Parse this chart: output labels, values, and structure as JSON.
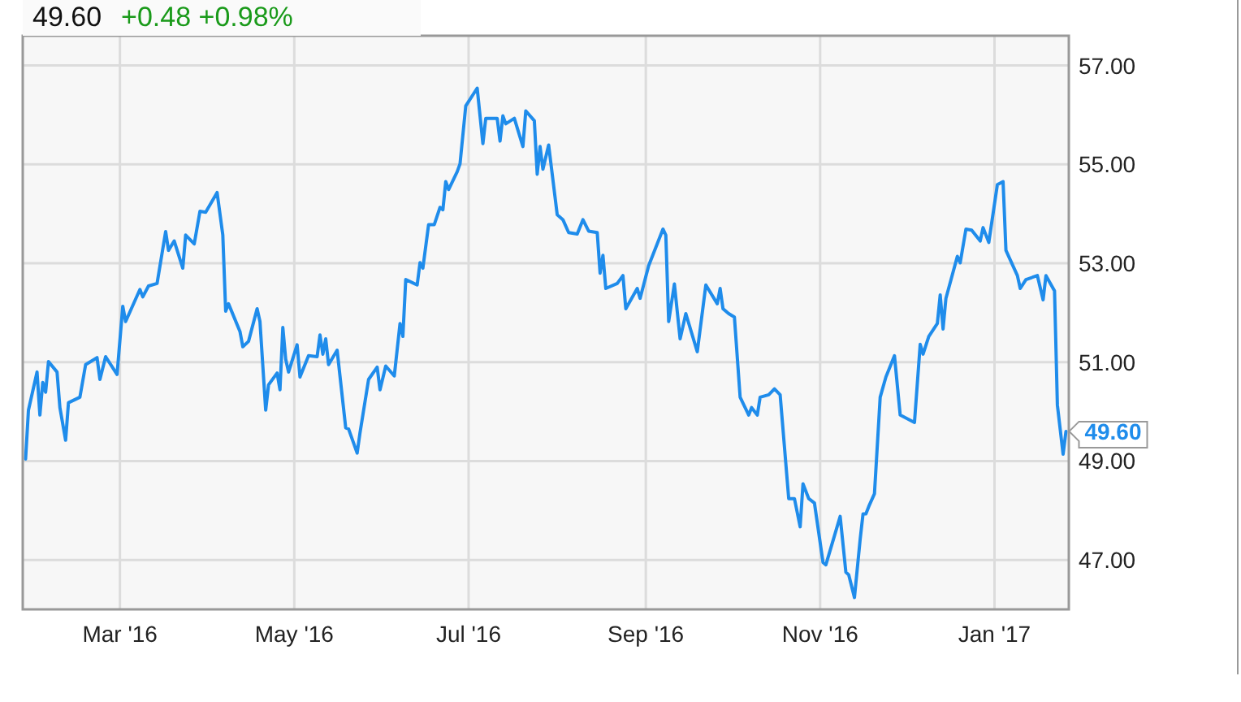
{
  "chart_data": {
    "type": "line",
    "title": "49.60",
    "subtitle": "+0.48  +0.98%",
    "x": [
      "2016-01-28",
      "2016-01-29",
      "2016-02-01",
      "2016-02-02",
      "2016-02-03",
      "2016-02-04",
      "2016-02-05",
      "2016-02-08",
      "2016-02-09",
      "2016-02-11",
      "2016-02-12",
      "2016-02-16",
      "2016-02-18",
      "2016-02-22",
      "2016-02-23",
      "2016-02-25",
      "2016-02-29",
      "2016-03-02",
      "2016-03-03",
      "2016-03-08",
      "2016-03-09",
      "2016-03-11",
      "2016-03-14",
      "2016-03-17",
      "2016-03-18",
      "2016-03-20",
      "2016-03-23",
      "2016-03-24",
      "2016-03-27",
      "2016-03-29",
      "2016-03-31",
      "2016-04-04",
      "2016-04-06",
      "2016-04-07",
      "2016-04-08",
      "2016-04-12",
      "2016-04-13",
      "2016-04-15",
      "2016-04-18",
      "2016-04-19",
      "2016-04-21",
      "2016-04-22",
      "2016-04-25",
      "2016-04-26",
      "2016-04-27",
      "2016-04-28",
      "2016-04-29",
      "2016-05-02",
      "2016-05-03",
      "2016-05-06",
      "2016-05-09",
      "2016-05-10",
      "2016-05-11",
      "2016-05-12",
      "2016-05-13",
      "2016-05-16",
      "2016-05-19",
      "2016-05-20",
      "2016-05-23",
      "2016-05-24",
      "2016-05-27",
      "2016-05-30",
      "2016-05-31",
      "2016-06-02",
      "2016-06-05",
      "2016-06-07",
      "2016-06-08",
      "2016-06-09",
      "2016-06-13",
      "2016-06-14",
      "2016-06-15",
      "2016-06-17",
      "2016-06-19",
      "2016-06-21",
      "2016-06-22",
      "2016-06-23",
      "2016-06-24",
      "2016-06-27",
      "2016-06-28",
      "2016-06-30",
      "2016-07-04",
      "2016-07-06",
      "2016-07-07",
      "2016-07-11",
      "2016-07-12",
      "2016-07-13",
      "2016-07-14",
      "2016-07-17",
      "2016-07-20",
      "2016-07-21",
      "2016-07-24",
      "2016-07-25",
      "2016-07-26",
      "2016-07-27",
      "2016-07-29",
      "2016-08-01",
      "2016-08-03",
      "2016-08-05",
      "2016-08-08",
      "2016-08-10",
      "2016-08-12",
      "2016-08-15",
      "2016-08-16",
      "2016-08-17",
      "2016-08-18",
      "2016-08-22",
      "2016-08-24",
      "2016-08-25",
      "2016-08-29",
      "2016-08-30",
      "2016-09-02",
      "2016-09-07",
      "2016-09-08",
      "2016-09-09",
      "2016-09-11",
      "2016-09-13",
      "2016-09-15",
      "2016-09-19",
      "2016-09-22",
      "2016-09-26",
      "2016-09-27",
      "2016-09-28",
      "2016-09-30",
      "2016-10-02",
      "2016-10-04",
      "2016-10-07",
      "2016-10-08",
      "2016-10-10",
      "2016-10-11",
      "2016-10-14",
      "2016-10-16",
      "2016-10-18",
      "2016-10-21",
      "2016-10-23",
      "2016-10-25",
      "2016-10-26",
      "2016-10-28",
      "2016-10-30",
      "2016-11-02",
      "2016-11-03",
      "2016-11-08",
      "2016-11-10",
      "2016-11-11",
      "2016-11-13",
      "2016-11-15",
      "2016-11-16",
      "2016-11-17",
      "2016-11-18",
      "2016-11-20",
      "2016-11-22",
      "2016-11-24",
      "2016-11-27",
      "2016-11-29",
      "2016-12-04",
      "2016-12-06",
      "2016-12-07",
      "2016-12-09",
      "2016-12-12",
      "2016-12-13",
      "2016-12-14",
      "2016-12-15",
      "2016-12-19",
      "2016-12-20",
      "2016-12-22",
      "2016-12-24",
      "2016-12-27",
      "2016-12-28",
      "2016-12-30",
      "2017-01-02",
      "2017-01-04",
      "2017-01-05",
      "2017-01-09",
      "2017-01-10",
      "2017-01-12",
      "2017-01-16",
      "2017-01-18",
      "2017-01-19",
      "2017-01-22",
      "2017-01-23",
      "2017-01-25",
      "2017-01-26"
    ],
    "series": [
      {
        "color": "#1f8ceb",
        "values": [
          49.04,
          50.03,
          50.8,
          49.93,
          50.59,
          50.39,
          51.01,
          50.8,
          50.08,
          49.42,
          50.18,
          50.29,
          50.95,
          51.09,
          50.65,
          51.11,
          50.75,
          52.13,
          51.82,
          52.47,
          52.32,
          52.54,
          52.59,
          53.64,
          53.26,
          53.45,
          52.9,
          53.57,
          53.39,
          54.05,
          54.03,
          54.43,
          53.57,
          52.03,
          52.18,
          51.62,
          51.31,
          51.42,
          52.08,
          51.82,
          50.03,
          50.54,
          50.78,
          50.44,
          51.7,
          51.06,
          50.8,
          51.35,
          50.7,
          51.13,
          51.11,
          51.55,
          51.16,
          51.47,
          50.95,
          51.24,
          49.67,
          49.65,
          49.16,
          49.57,
          50.65,
          50.9,
          50.44,
          50.92,
          50.72,
          51.78,
          51.52,
          52.67,
          52.56,
          53.01,
          52.9,
          53.78,
          53.78,
          54.13,
          54.08,
          54.65,
          54.49,
          54.85,
          55.01,
          56.18,
          56.54,
          55.42,
          55.93,
          55.93,
          55.47,
          55.98,
          55.82,
          55.93,
          55.36,
          56.08,
          55.88,
          54.8,
          55.36,
          54.9,
          55.39,
          53.98,
          53.88,
          53.62,
          53.59,
          53.88,
          53.65,
          53.62,
          52.8,
          53.16,
          52.49,
          52.59,
          52.75,
          52.08,
          52.49,
          52.29,
          52.95,
          53.69,
          53.57,
          51.82,
          52.58,
          51.47,
          51.98,
          51.21,
          52.56,
          52.18,
          52.49,
          52.08,
          51.98,
          51.91,
          50.29,
          49.93,
          50.08,
          49.93,
          50.29,
          50.34,
          50.46,
          50.34,
          48.24,
          48.24,
          47.67,
          48.54,
          48.24,
          48.15,
          46.95,
          46.9,
          47.88,
          46.75,
          46.7,
          46.24,
          47.42,
          47.93,
          47.93,
          48.08,
          48.34,
          50.29,
          50.7,
          51.13,
          49.93,
          49.78,
          51.36,
          51.16,
          51.52,
          51.78,
          52.36,
          51.67,
          52.29,
          53.14,
          53.01,
          53.69,
          53.67,
          53.45,
          53.72,
          53.42,
          54.59,
          54.65,
          53.26,
          52.75,
          52.49,
          52.67,
          52.75,
          52.26,
          52.75,
          52.44,
          50.13,
          49.14,
          49.6
        ]
      }
    ],
    "annotations": [
      {
        "text": "49.60",
        "x": "2017-01-26",
        "y": 49.6
      }
    ],
    "xlim": [
      "2016-01-27",
      "2017-01-27"
    ],
    "xticks": [
      {
        "value": "2016-03-01",
        "label": "Mar '16"
      },
      {
        "value": "2016-05-01",
        "label": "May '16"
      },
      {
        "value": "2016-07-01",
        "label": "Jul '16"
      },
      {
        "value": "2016-09-01",
        "label": "Sep '16"
      },
      {
        "value": "2016-11-01",
        "label": "Nov '16"
      },
      {
        "value": "2017-01-01",
        "label": "Jan '17"
      }
    ],
    "ylim": [
      46,
      57.6
    ],
    "yticks": [
      {
        "value": 47,
        "label": "47.00"
      },
      {
        "value": 49,
        "label": "49.00"
      },
      {
        "value": 51,
        "label": "51.00"
      },
      {
        "value": 53,
        "label": "53.00"
      },
      {
        "value": 55,
        "label": "55.00"
      },
      {
        "value": 57,
        "label": "57.00"
      }
    ],
    "grid": true,
    "marker": "none",
    "line_style": "solid"
  }
}
